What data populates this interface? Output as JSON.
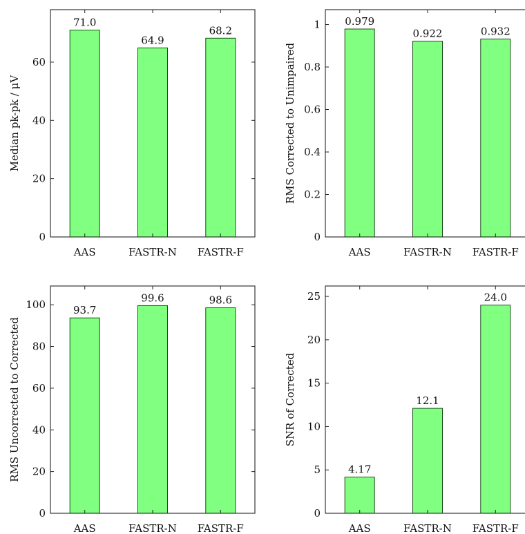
{
  "bar_color": "#80ff80",
  "bar_stroke": "#1a4d1a",
  "chart_data": [
    {
      "type": "bar",
      "categories": [
        "AAS",
        "FASTR-N",
        "FASTR-F"
      ],
      "values": [
        71.0,
        64.9,
        68.2
      ],
      "value_labels": [
        "71.0",
        "64.9",
        "68.2"
      ],
      "ylabel": "Median pk-pk / μV",
      "ylim": [
        0,
        78
      ],
      "yticks": [
        0,
        20,
        40,
        60
      ],
      "ytick_labels": [
        "0",
        "20",
        "40",
        "60"
      ]
    },
    {
      "type": "bar",
      "categories": [
        "AAS",
        "FASTR-N",
        "FASTR-F"
      ],
      "values": [
        0.979,
        0.922,
        0.932
      ],
      "value_labels": [
        "0.979",
        "0.922",
        "0.932"
      ],
      "ylabel": "RMS Corrected to Unimpaired",
      "ylim": [
        0,
        1.07
      ],
      "yticks": [
        0,
        0.2,
        0.4,
        0.6,
        0.8,
        1
      ],
      "ytick_labels": [
        "0",
        "0.2",
        "0.4",
        "0.6",
        "0.8",
        "1"
      ]
    },
    {
      "type": "bar",
      "categories": [
        "AAS",
        "FASTR-N",
        "FASTR-F"
      ],
      "values": [
        93.7,
        99.6,
        98.6
      ],
      "value_labels": [
        "93.7",
        "99.6",
        "98.6"
      ],
      "ylabel": "RMS Uncorrected to Corrected",
      "ylim": [
        0,
        109
      ],
      "yticks": [
        0,
        20,
        40,
        60,
        80,
        100
      ],
      "ytick_labels": [
        "0",
        "20",
        "40",
        "60",
        "80",
        "100"
      ]
    },
    {
      "type": "bar",
      "categories": [
        "AAS",
        "FASTR-N",
        "FASTR-F"
      ],
      "values": [
        4.17,
        12.1,
        24.0
      ],
      "value_labels": [
        "4.17",
        "12.1",
        "24.0"
      ],
      "ylabel": "SNR of Corrected",
      "ylim": [
        0,
        26.2
      ],
      "yticks": [
        0,
        5,
        10,
        15,
        20,
        25
      ],
      "ytick_labels": [
        "0",
        "5",
        "10",
        "15",
        "20",
        "25"
      ]
    }
  ]
}
